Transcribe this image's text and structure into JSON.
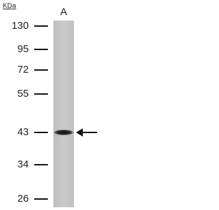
{
  "unit_label": "KDa",
  "lane_label": "A",
  "markers": [
    "130",
    "95",
    "72",
    "55",
    "43",
    "34",
    "26"
  ]
}
